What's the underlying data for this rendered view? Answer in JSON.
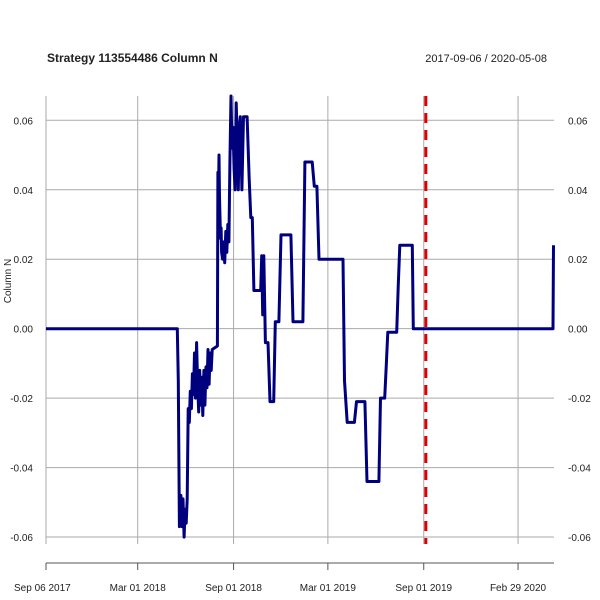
{
  "chart_data": {
    "type": "line",
    "title": "Strategy 113554486 Column N",
    "date_range": "2017-09-06 / 2020-05-08",
    "ylabel": "Column N",
    "xlabel": "",
    "ylim": [
      -0.062,
      0.067
    ],
    "xlim": [
      "2017-09-06",
      "2020-05-08"
    ],
    "y_ticks": [
      {
        "value": -0.06,
        "label": "-0.06"
      },
      {
        "value": -0.04,
        "label": "-0.04"
      },
      {
        "value": -0.02,
        "label": "-0.02"
      },
      {
        "value": 0.0,
        "label": "0.00"
      },
      {
        "value": 0.02,
        "label": "0.02"
      },
      {
        "value": 0.04,
        "label": "0.04"
      },
      {
        "value": 0.06,
        "label": "0.06"
      }
    ],
    "x_ticks": [
      {
        "date": "2017-09-06",
        "label": "Sep 06 2017"
      },
      {
        "date": "2018-03-01",
        "label": "Mar 01 2018"
      },
      {
        "date": "2018-09-01",
        "label": "Sep 01 2018"
      },
      {
        "date": "2019-03-01",
        "label": "Mar 01 2019"
      },
      {
        "date": "2019-09-01",
        "label": "Sep 01 2019"
      },
      {
        "date": "2020-02-29",
        "label": "Feb 29 2020"
      }
    ],
    "grid": true,
    "colors": {
      "series": "#00007f",
      "marker": "#dd0000",
      "grid": "#aaaaaa",
      "axis": "#555555"
    },
    "vertical_marker": {
      "date": "2019-09-05",
      "style": "dashed"
    },
    "series": [
      {
        "points": [
          [
            "2017-09-06",
            0.0
          ],
          [
            "2018-05-16",
            0.0
          ],
          [
            "2018-05-18",
            -0.015
          ],
          [
            "2018-05-20",
            -0.057
          ],
          [
            "2018-05-23",
            -0.048
          ],
          [
            "2018-05-25",
            -0.057
          ],
          [
            "2018-05-27",
            -0.049
          ],
          [
            "2018-05-29",
            -0.06
          ],
          [
            "2018-05-31",
            -0.052
          ],
          [
            "2018-06-02",
            -0.056
          ],
          [
            "2018-06-04",
            -0.049
          ],
          [
            "2018-06-06",
            -0.023
          ],
          [
            "2018-06-08",
            -0.027
          ],
          [
            "2018-06-10",
            -0.018
          ],
          [
            "2018-06-12",
            -0.023
          ],
          [
            "2018-06-14",
            -0.013
          ],
          [
            "2018-06-16",
            -0.019
          ],
          [
            "2018-06-18",
            -0.007
          ],
          [
            "2018-06-20",
            -0.02
          ],
          [
            "2018-06-22",
            -0.004
          ],
          [
            "2018-06-24",
            -0.016
          ],
          [
            "2018-06-26",
            -0.024
          ],
          [
            "2018-06-28",
            -0.012
          ],
          [
            "2018-06-30",
            -0.022
          ],
          [
            "2018-07-02",
            -0.014
          ],
          [
            "2018-07-04",
            -0.025
          ],
          [
            "2018-07-06",
            -0.012
          ],
          [
            "2018-07-08",
            -0.022
          ],
          [
            "2018-07-10",
            -0.011
          ],
          [
            "2018-07-12",
            -0.017
          ],
          [
            "2018-07-14",
            -0.006
          ],
          [
            "2018-07-16",
            -0.016
          ],
          [
            "2018-07-18",
            -0.007
          ],
          [
            "2018-07-20",
            -0.012
          ],
          [
            "2018-07-22",
            -0.006
          ],
          [
            "2018-08-01",
            -0.005
          ],
          [
            "2018-08-02",
            0.045
          ],
          [
            "2018-08-03",
            0.038
          ],
          [
            "2018-08-04",
            0.05
          ],
          [
            "2018-08-05",
            0.038
          ],
          [
            "2018-08-06",
            0.032
          ],
          [
            "2018-08-07",
            0.026
          ],
          [
            "2018-08-08",
            0.029
          ],
          [
            "2018-08-09",
            0.022
          ],
          [
            "2018-08-11",
            0.02
          ],
          [
            "2018-08-13",
            0.025
          ],
          [
            "2018-08-15",
            0.019
          ],
          [
            "2018-08-17",
            0.028
          ],
          [
            "2018-08-19",
            0.022
          ],
          [
            "2018-08-21",
            0.03
          ],
          [
            "2018-08-23",
            0.025
          ],
          [
            "2018-08-25",
            0.048
          ],
          [
            "2018-08-27",
            0.067
          ],
          [
            "2018-08-29",
            0.052
          ],
          [
            "2018-08-31",
            0.058
          ],
          [
            "2018-09-02",
            0.046
          ],
          [
            "2018-09-04",
            0.04
          ],
          [
            "2018-09-06",
            0.065
          ],
          [
            "2018-09-08",
            0.055
          ],
          [
            "2018-09-10",
            0.04
          ],
          [
            "2018-09-12",
            0.058
          ],
          [
            "2018-09-14",
            0.061
          ],
          [
            "2018-09-17",
            0.04
          ],
          [
            "2018-09-20",
            0.061
          ],
          [
            "2018-09-23",
            0.061
          ],
          [
            "2018-09-27",
            0.061
          ],
          [
            "2018-10-01",
            0.043
          ],
          [
            "2018-10-04",
            0.032
          ],
          [
            "2018-10-07",
            0.032
          ],
          [
            "2018-10-10",
            0.011
          ],
          [
            "2018-10-17",
            0.011
          ],
          [
            "2018-10-23",
            0.011
          ],
          [
            "2018-10-25",
            0.021
          ],
          [
            "2018-10-27",
            0.004
          ],
          [
            "2018-10-29",
            0.021
          ],
          [
            "2018-11-01",
            -0.004
          ],
          [
            "2018-11-06",
            -0.004
          ],
          [
            "2018-11-10",
            -0.021
          ],
          [
            "2018-11-17",
            -0.021
          ],
          [
            "2018-11-20",
            0.002
          ],
          [
            "2018-11-27",
            0.002
          ],
          [
            "2018-12-01",
            0.027
          ],
          [
            "2018-12-20",
            0.027
          ],
          [
            "2018-12-24",
            0.002
          ],
          [
            "2019-01-12",
            0.002
          ],
          [
            "2019-01-16",
            0.048
          ],
          [
            "2019-01-30",
            0.048
          ],
          [
            "2019-02-03",
            0.041
          ],
          [
            "2019-02-08",
            0.041
          ],
          [
            "2019-02-12",
            0.02
          ],
          [
            "2019-03-30",
            0.02
          ],
          [
            "2019-04-02",
            -0.015
          ],
          [
            "2019-04-07",
            -0.027
          ],
          [
            "2019-04-21",
            -0.027
          ],
          [
            "2019-04-25",
            -0.021
          ],
          [
            "2019-05-11",
            -0.021
          ],
          [
            "2019-05-15",
            -0.044
          ],
          [
            "2019-06-07",
            -0.044
          ],
          [
            "2019-06-10",
            -0.02
          ],
          [
            "2019-06-18",
            -0.02
          ],
          [
            "2019-06-21",
            -0.011
          ],
          [
            "2019-06-24",
            -0.001
          ],
          [
            "2019-07-11",
            -0.001
          ],
          [
            "2019-07-14",
            0.012
          ],
          [
            "2019-07-17",
            0.024
          ],
          [
            "2019-08-10",
            0.024
          ],
          [
            "2019-08-12",
            0.0
          ],
          [
            "2020-05-06",
            0.0
          ],
          [
            "2020-05-07",
            0.024
          ]
        ]
      }
    ]
  }
}
